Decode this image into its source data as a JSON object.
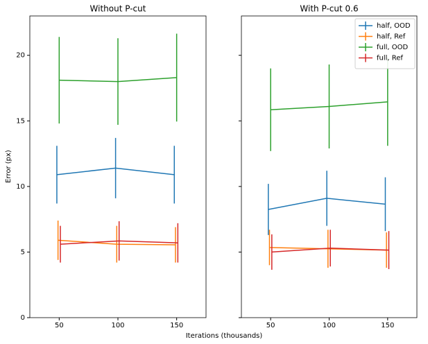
{
  "xlabel": "Iterations (thousands)",
  "chart_data": [
    {
      "type": "errorbar",
      "title": "Without P-cut",
      "ylabel": "Error (px)",
      "xlim": [
        25,
        175
      ],
      "xticks": [
        50,
        100,
        150
      ],
      "ylim": [
        0,
        23
      ],
      "yticks": [
        0,
        5,
        10,
        15,
        20
      ],
      "series": [
        {
          "color": "#1f77b4",
          "x": [
            48,
            98,
            148
          ],
          "values": [
            10.9,
            11.4,
            10.9
          ],
          "errors": [
            2.2,
            2.3,
            2.2
          ]
        },
        {
          "color": "#ff7f0e",
          "x": [
            49,
            99,
            149
          ],
          "values": [
            5.9,
            5.6,
            5.55
          ],
          "errors": [
            1.5,
            1.4,
            1.35
          ]
        },
        {
          "color": "#2ca02c",
          "x": [
            50,
            100,
            150
          ],
          "values": [
            18.1,
            18.0,
            18.3
          ],
          "errors": [
            3.3,
            3.3,
            3.35
          ]
        },
        {
          "color": "#d62728",
          "x": [
            51,
            101,
            151
          ],
          "values": [
            5.6,
            5.85,
            5.7
          ],
          "errors": [
            1.4,
            1.5,
            1.5
          ]
        }
      ]
    },
    {
      "type": "errorbar",
      "title": "With P-cut 0.6",
      "sharey": true,
      "legend": "upper right",
      "xlim": [
        25,
        175
      ],
      "xticks": [
        50,
        100,
        150
      ],
      "series": [
        {
          "name": "half, OOD",
          "color": "#1f77b4",
          "x": [
            48,
            98,
            148
          ],
          "values": [
            8.25,
            9.1,
            8.65
          ],
          "errors": [
            1.95,
            2.1,
            2.05
          ]
        },
        {
          "name": "half, Ref",
          "color": "#ff7f0e",
          "x": [
            49,
            99,
            149
          ],
          "values": [
            5.35,
            5.25,
            5.15
          ],
          "errors": [
            1.35,
            1.45,
            1.35
          ]
        },
        {
          "name": "full, OOD",
          "color": "#2ca02c",
          "x": [
            50,
            100,
            150
          ],
          "values": [
            15.85,
            16.1,
            16.45
          ],
          "errors": [
            3.15,
            3.2,
            3.35
          ]
        },
        {
          "name": "full, Ref",
          "color": "#d62728",
          "x": [
            51,
            101,
            151
          ],
          "values": [
            5.0,
            5.3,
            5.15
          ],
          "errors": [
            1.35,
            1.4,
            1.45
          ]
        }
      ]
    }
  ]
}
